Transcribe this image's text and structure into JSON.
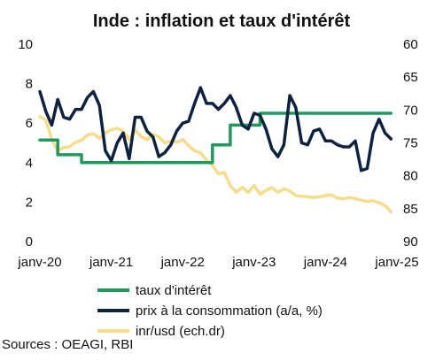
{
  "chart_data": {
    "type": "line",
    "title": "Inde : inflation et taux d'intérêt",
    "x_ticks": [
      "janv-20",
      "janv-21",
      "janv-22",
      "janv-23",
      "janv-24",
      "janv-25"
    ],
    "x_range": [
      "2020-01",
      "2025-01"
    ],
    "y_left": {
      "range": [
        0,
        10
      ],
      "ticks": [
        "0",
        "2",
        "4",
        "6",
        "8",
        "10"
      ]
    },
    "y_right": {
      "range": [
        60,
        90
      ],
      "inverted": true,
      "ticks": [
        "60",
        "65",
        "70",
        "75",
        "80",
        "85",
        "90"
      ]
    },
    "grid": false,
    "legend_position": "bottom",
    "series": [
      {
        "name": "taux d'intérêt",
        "axis": "left",
        "color": "#1f9a5c",
        "step": true,
        "x": [
          "2020-01",
          "2020-03",
          "2020-04",
          "2020-05",
          "2020-08",
          "2022-05",
          "2022-06",
          "2022-08",
          "2022-09",
          "2022-12",
          "2023-02",
          "2024-12"
        ],
        "y": [
          5.15,
          5.15,
          4.4,
          4.4,
          4.0,
          4.0,
          4.9,
          4.9,
          5.9,
          5.9,
          6.5,
          6.5
        ]
      },
      {
        "name": "prix à la consommation (a/a, %)",
        "axis": "left",
        "color": "#0d2240",
        "x": [
          "2020-01",
          "2020-02",
          "2020-03",
          "2020-04",
          "2020-05",
          "2020-06",
          "2020-07",
          "2020-08",
          "2020-09",
          "2020-10",
          "2020-11",
          "2020-12",
          "2021-01",
          "2021-02",
          "2021-03",
          "2021-04",
          "2021-05",
          "2021-06",
          "2021-07",
          "2021-08",
          "2021-09",
          "2021-10",
          "2021-11",
          "2021-12",
          "2022-01",
          "2022-02",
          "2022-03",
          "2022-04",
          "2022-05",
          "2022-06",
          "2022-07",
          "2022-08",
          "2022-09",
          "2022-10",
          "2022-11",
          "2022-12",
          "2023-01",
          "2023-02",
          "2023-03",
          "2023-04",
          "2023-05",
          "2023-06",
          "2023-07",
          "2023-08",
          "2023-09",
          "2023-10",
          "2023-11",
          "2023-12",
          "2024-01",
          "2024-02",
          "2024-03",
          "2024-04",
          "2024-05",
          "2024-06",
          "2024-07",
          "2024-08",
          "2024-09",
          "2024-10",
          "2024-11",
          "2024-12"
        ],
        "y": [
          7.6,
          6.6,
          5.9,
          7.2,
          6.3,
          6.2,
          6.7,
          6.7,
          7.3,
          7.6,
          6.9,
          4.6,
          4.1,
          5.0,
          5.5,
          4.2,
          6.3,
          6.3,
          5.6,
          5.3,
          4.3,
          4.5,
          4.9,
          5.6,
          6.0,
          6.1,
          7.0,
          7.8,
          7.0,
          7.0,
          6.7,
          7.0,
          7.4,
          6.8,
          5.9,
          5.7,
          6.5,
          6.4,
          5.7,
          4.7,
          4.3,
          4.9,
          7.4,
          6.8,
          5.0,
          4.9,
          5.6,
          5.7,
          5.1,
          5.1,
          4.9,
          4.8,
          4.8,
          5.1,
          3.6,
          3.7,
          5.5,
          6.2,
          5.5,
          5.2
        ]
      },
      {
        "name": "inr/usd (ech.dr)",
        "axis": "right",
        "color": "#f7dc8a",
        "x": [
          "2020-01",
          "2020-02",
          "2020-03",
          "2020-04",
          "2020-05",
          "2020-06",
          "2020-07",
          "2020-08",
          "2020-09",
          "2020-10",
          "2020-11",
          "2020-12",
          "2021-01",
          "2021-02",
          "2021-03",
          "2021-04",
          "2021-05",
          "2021-06",
          "2021-07",
          "2021-08",
          "2021-09",
          "2021-10",
          "2021-11",
          "2021-12",
          "2022-01",
          "2022-02",
          "2022-03",
          "2022-04",
          "2022-05",
          "2022-06",
          "2022-07",
          "2022-08",
          "2022-09",
          "2022-10",
          "2022-11",
          "2022-12",
          "2023-01",
          "2023-02",
          "2023-03",
          "2023-04",
          "2023-05",
          "2023-06",
          "2023-07",
          "2023-08",
          "2023-09",
          "2023-10",
          "2023-11",
          "2023-12",
          "2024-01",
          "2024-02",
          "2024-03",
          "2024-04",
          "2024-05",
          "2024-06",
          "2024-07",
          "2024-08",
          "2024-09",
          "2024-10",
          "2024-11",
          "2024-12"
        ],
        "y": [
          71.0,
          71.5,
          74.5,
          76.2,
          75.7,
          75.6,
          74.9,
          74.6,
          73.8,
          73.6,
          74.3,
          73.5,
          73.0,
          72.8,
          73.2,
          74.5,
          73.1,
          74.0,
          74.5,
          73.7,
          74.1,
          75.0,
          74.7,
          74.9,
          74.5,
          75.4,
          76.2,
          76.5,
          77.6,
          78.4,
          79.7,
          79.5,
          81.5,
          82.5,
          81.8,
          82.5,
          81.5,
          82.8,
          82.2,
          81.8,
          82.5,
          82.0,
          82.3,
          83.0,
          83.1,
          83.2,
          83.3,
          83.2,
          83.0,
          82.9,
          83.4,
          83.5,
          83.3,
          83.5,
          83.7,
          83.9,
          83.8,
          84.1,
          84.5,
          85.5
        ]
      }
    ]
  },
  "source": "Sources : OEAGI, RBI"
}
